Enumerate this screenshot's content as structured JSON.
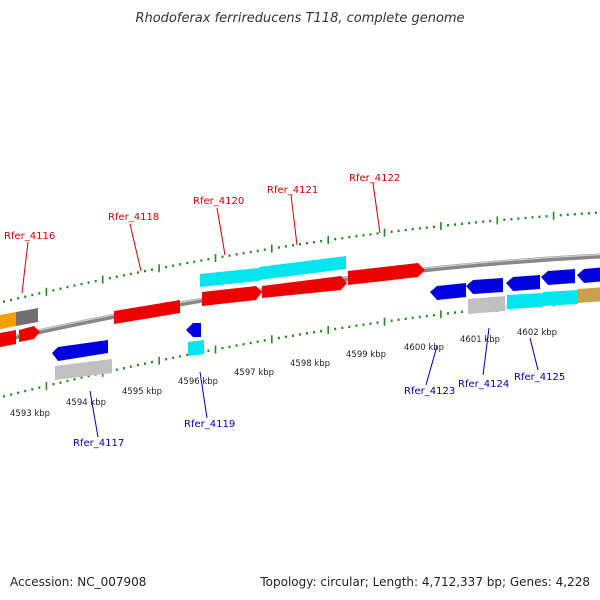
{
  "title": "Rhodoferax ferrireducens T118, complete genome",
  "footer": {
    "accession": "Accession: NC_007908",
    "summary": "Topology: circular; Length: 4,712,337 bp; Genes: 4,228"
  },
  "colors": {
    "forward_label": "#cc0000",
    "reverse_label": "#0000aa",
    "red_gene": "#ee0000",
    "blue_gene": "#0000dd",
    "cyan_gene": "#00e5ee",
    "gray_gene": "#c0c0c0",
    "dark_gray_gene": "#707070",
    "orange_gene": "#f0a000",
    "tan_gene": "#c8a050",
    "tick": "#228b22",
    "axis": "#888888"
  },
  "kbp_labels": [
    "4593 kbp",
    "4594 kbp",
    "4595 kbp",
    "4596 kbp",
    "4597 kbp",
    "4598 kbp",
    "4599 kbp",
    "4600 kbp",
    "4601 kbp",
    "4602 kbp"
  ],
  "forward_labels": [
    "Rfer_4116",
    "Rfer_4118",
    "Rfer_4120",
    "Rfer_4121",
    "Rfer_4122"
  ],
  "reverse_labels": [
    "Rfer_4117",
    "Rfer_4119",
    "Rfer_4123",
    "Rfer_4124",
    "Rfer_4125"
  ]
}
